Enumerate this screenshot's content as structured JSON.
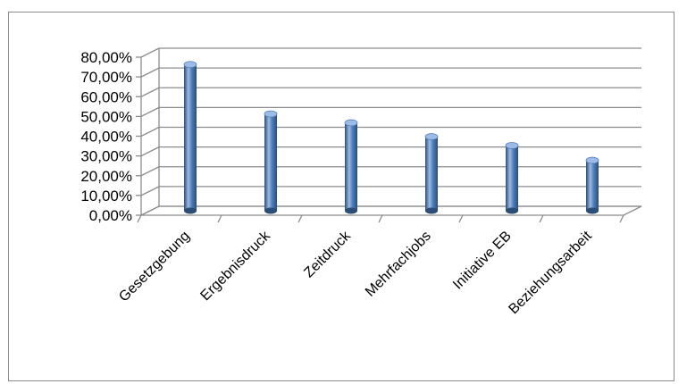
{
  "chart_data": {
    "type": "bar",
    "style": "3d-cylinder",
    "categories": [
      "Gesetzgebung",
      "Ergebnisdruck",
      "Zeitdruck",
      "Mehrfachjobs",
      "Initiative EB",
      "Beziehungsarbeit"
    ],
    "values": [
      0.74,
      0.49,
      0.445,
      0.375,
      0.33,
      0.255
    ],
    "yticks": [
      0,
      0.1,
      0.2,
      0.3,
      0.4,
      0.5,
      0.6,
      0.7,
      0.8
    ],
    "ytick_labels": [
      "0,00%",
      "10,00%",
      "20,00%",
      "30,00%",
      "40,00%",
      "50,00%",
      "60,00%",
      "70,00%",
      "80,00%"
    ],
    "ylim": [
      0,
      0.8
    ],
    "grid": true,
    "legend": "none",
    "bar_color": "#4f81bd",
    "bar_dark": "#2c4d75",
    "bar_light": "#9cbbe6",
    "grid_color": "#8c8c8c"
  }
}
